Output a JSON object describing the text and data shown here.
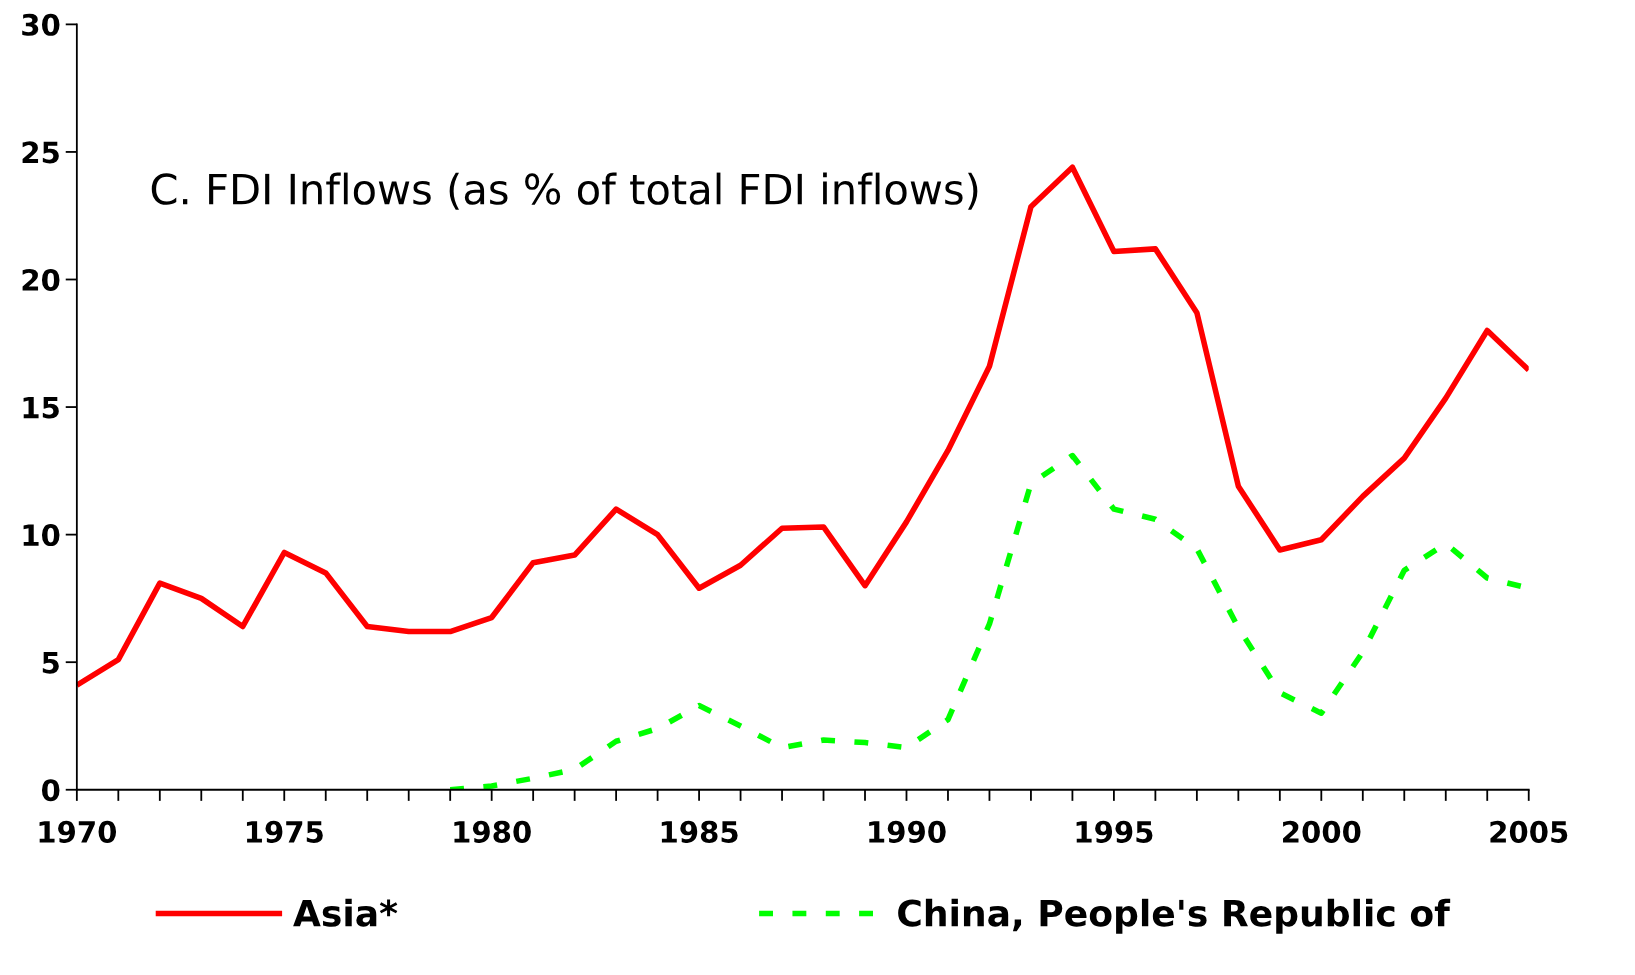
{
  "chart_data": {
    "type": "line",
    "title": "C. FDI Inflows (as % of total FDI inflows)",
    "x": [
      1970,
      1971,
      1972,
      1973,
      1974,
      1975,
      1976,
      1977,
      1978,
      1979,
      1980,
      1981,
      1982,
      1983,
      1984,
      1985,
      1986,
      1987,
      1988,
      1989,
      1990,
      1991,
      1992,
      1993,
      1994,
      1995,
      1996,
      1997,
      1998,
      1999,
      2000,
      2001,
      2002,
      2003,
      2004,
      2005
    ],
    "series": [
      {
        "name": "Asia*",
        "color": "#ff0000",
        "line_style": "solid",
        "values": [
          4.1,
          5.1,
          8.1,
          7.5,
          6.4,
          9.3,
          8.5,
          6.4,
          6.2,
          6.2,
          6.75,
          8.9,
          9.2,
          11.0,
          10.0,
          7.9,
          8.8,
          10.25,
          10.3,
          8.0,
          10.5,
          13.3,
          16.6,
          22.85,
          24.4,
          21.1,
          21.2,
          18.7,
          11.9,
          9.4,
          9.8,
          11.5,
          13.0,
          15.35,
          18.0,
          16.45
        ]
      },
      {
        "name": "China, People's Republic of",
        "color": "#00ff00",
        "line_style": "dashed",
        "values": [
          null,
          null,
          null,
          null,
          null,
          null,
          null,
          null,
          null,
          0,
          0.15,
          0.45,
          0.8,
          1.9,
          2.4,
          3.3,
          2.5,
          1.65,
          1.95,
          1.85,
          1.65,
          2.75,
          6.5,
          12.0,
          13.1,
          11.0,
          10.6,
          9.45,
          6.35,
          3.8,
          3.0,
          5.4,
          8.6,
          9.65,
          8.3,
          7.9
        ]
      }
    ],
    "xlim": [
      1970,
      2005
    ],
    "xticks": [
      1970,
      {
        "value": 1971,
        "label": null
      },
      {
        "value": 1972,
        "label": null
      },
      {
        "value": 1973,
        "label": null
      },
      {
        "value": 1974,
        "label": null
      },
      1975,
      {
        "value": 1976,
        "label": null
      },
      {
        "value": 1977,
        "label": null
      },
      {
        "value": 1978,
        "label": null
      },
      {
        "value": 1979,
        "label": null
      },
      1980,
      {
        "value": 1981,
        "label": null
      },
      {
        "value": 1982,
        "label": null
      },
      {
        "value": 1983,
        "label": null
      },
      {
        "value": 1984,
        "label": null
      },
      1985,
      {
        "value": 1986,
        "label": null
      },
      {
        "value": 1987,
        "label": null
      },
      {
        "value": 1988,
        "label": null
      },
      {
        "value": 1989,
        "label": null
      },
      1990,
      {
        "value": 1991,
        "label": null
      },
      {
        "value": 1992,
        "label": null
      },
      {
        "value": 1993,
        "label": null
      },
      {
        "value": 1994,
        "label": null
      },
      1995,
      {
        "value": 1996,
        "label": null
      },
      {
        "value": 1997,
        "label": null
      },
      {
        "value": 1998,
        "label": null
      },
      {
        "value": 1999,
        "label": null
      },
      2000,
      {
        "value": 2001,
        "label": null
      },
      {
        "value": 2002,
        "label": null
      },
      {
        "value": 2003,
        "label": null
      },
      {
        "value": 2004,
        "label": null
      },
      2005
    ],
    "ylim": [
      0,
      30
    ],
    "yticks": [
      0,
      5,
      10,
      15,
      20,
      25,
      30
    ],
    "grid": false,
    "legend": "bottom",
    "marker": "none"
  }
}
